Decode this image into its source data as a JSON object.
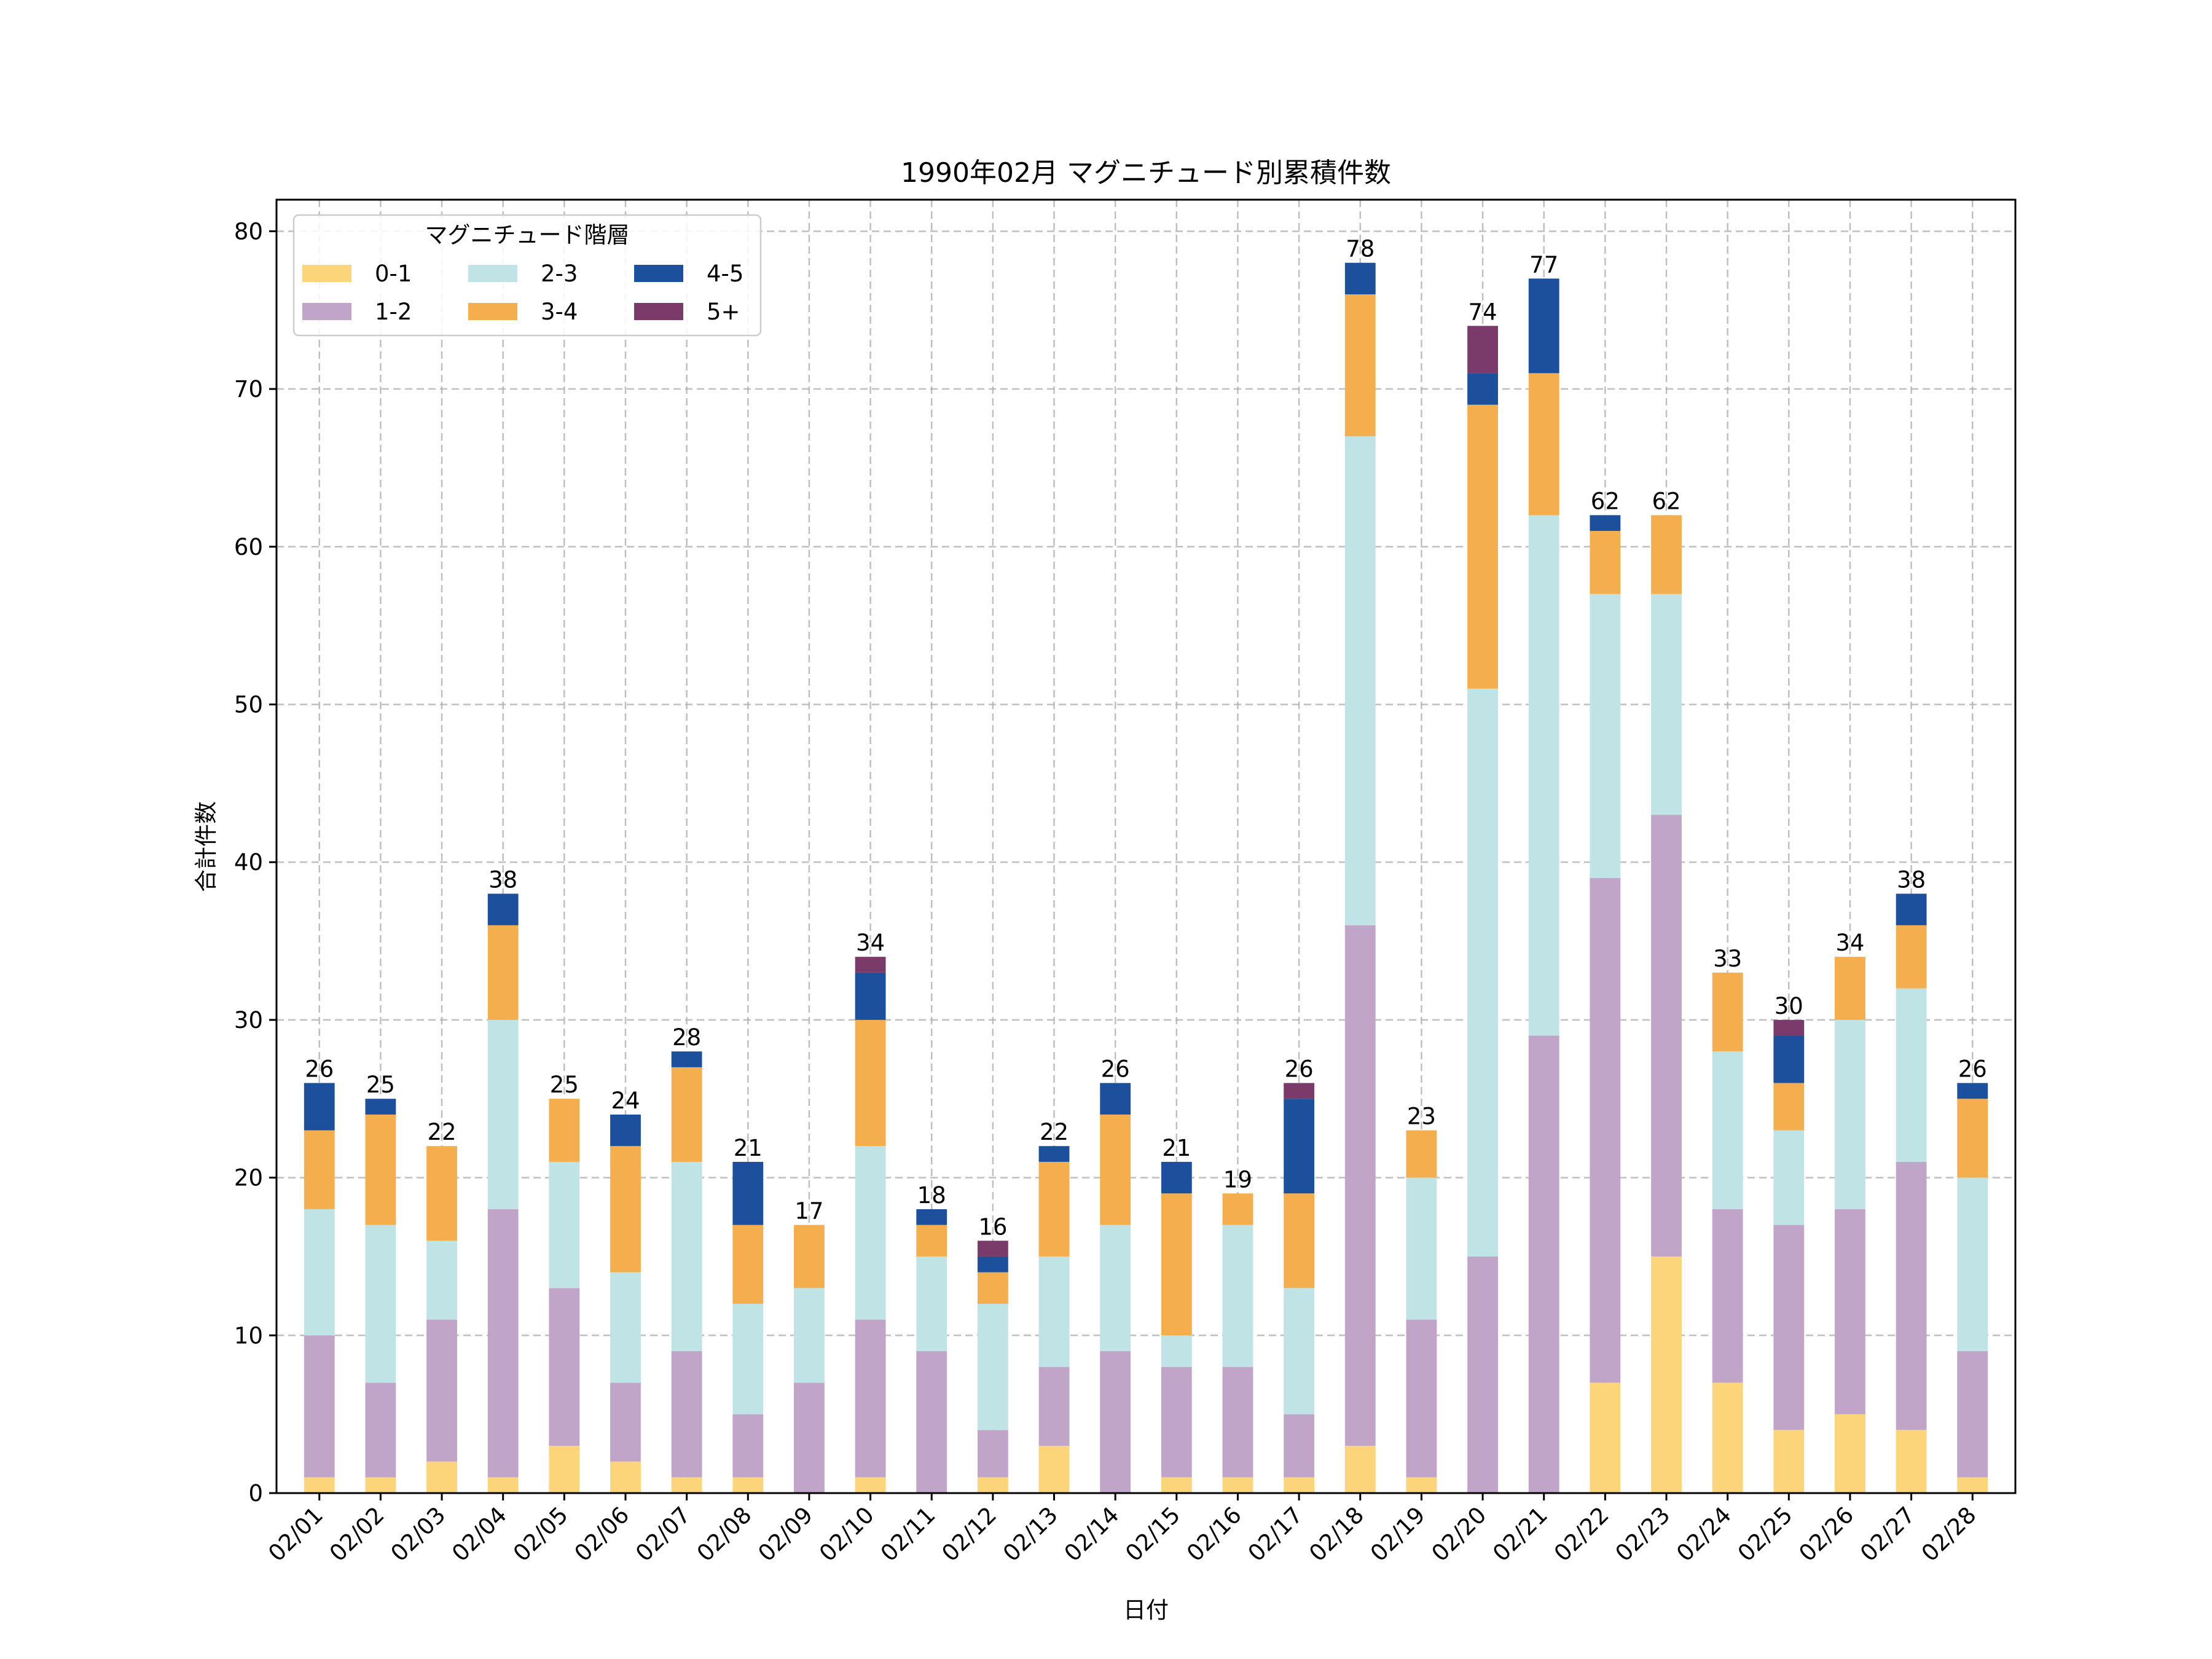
{
  "chart_data": {
    "type": "bar",
    "stacked": true,
    "title": "1990年02月 マグニチュード別累積件数",
    "xlabel": "日付",
    "ylabel": "合計件数",
    "ylim": [
      0,
      82
    ],
    "yticks": [
      0,
      10,
      20,
      30,
      40,
      50,
      60,
      70,
      80
    ],
    "grid": true,
    "legend": {
      "title": "マグニチュード階層",
      "position": "top-left",
      "columns": 3
    },
    "categories": [
      "02/01",
      "02/02",
      "02/03",
      "02/04",
      "02/05",
      "02/06",
      "02/07",
      "02/08",
      "02/09",
      "02/10",
      "02/11",
      "02/12",
      "02/13",
      "02/14",
      "02/15",
      "02/16",
      "02/17",
      "02/18",
      "02/19",
      "02/20",
      "02/21",
      "02/22",
      "02/23",
      "02/24",
      "02/25",
      "02/26",
      "02/27",
      "02/28"
    ],
    "series": [
      {
        "name": "0-1",
        "color": "#fcd57a",
        "values": [
          1,
          1,
          2,
          1,
          3,
          2,
          1,
          1,
          0,
          1,
          0,
          1,
          3,
          0,
          1,
          1,
          1,
          3,
          1,
          0,
          0,
          7,
          15,
          7,
          4,
          5,
          4,
          1
        ]
      },
      {
        "name": "1-2",
        "color": "#c1a5c8",
        "values": [
          9,
          6,
          9,
          17,
          10,
          5,
          8,
          4,
          7,
          10,
          9,
          3,
          5,
          9,
          7,
          7,
          4,
          33,
          10,
          15,
          29,
          32,
          28,
          11,
          13,
          13,
          17,
          8
        ]
      },
      {
        "name": "2-3",
        "color": "#c0e3e6",
        "values": [
          8,
          10,
          5,
          12,
          8,
          7,
          12,
          7,
          6,
          11,
          6,
          8,
          7,
          8,
          2,
          9,
          8,
          31,
          9,
          36,
          33,
          18,
          14,
          10,
          6,
          12,
          11,
          11
        ]
      },
      {
        "name": "3-4",
        "color": "#f4ae4d",
        "values": [
          5,
          7,
          6,
          6,
          4,
          8,
          6,
          5,
          4,
          8,
          2,
          2,
          6,
          7,
          9,
          2,
          6,
          9,
          3,
          18,
          9,
          4,
          5,
          5,
          3,
          4,
          4,
          5
        ]
      },
      {
        "name": "4-5",
        "color": "#1c4f9c",
        "values": [
          3,
          1,
          0,
          2,
          0,
          2,
          1,
          4,
          0,
          3,
          1,
          1,
          1,
          2,
          2,
          0,
          6,
          2,
          0,
          2,
          6,
          1,
          0,
          0,
          3,
          0,
          2,
          1
        ]
      },
      {
        "name": "5+",
        "color": "#7a3b6a",
        "values": [
          0,
          0,
          0,
          0,
          0,
          0,
          0,
          0,
          0,
          1,
          0,
          1,
          0,
          0,
          0,
          0,
          1,
          0,
          0,
          3,
          0,
          0,
          0,
          0,
          1,
          0,
          0,
          0
        ]
      }
    ],
    "totals": [
      26,
      25,
      22,
      38,
      25,
      24,
      28,
      21,
      17,
      34,
      18,
      16,
      22,
      26,
      21,
      19,
      26,
      78,
      23,
      74,
      77,
      62,
      62,
      33,
      30,
      34,
      38,
      26
    ]
  }
}
